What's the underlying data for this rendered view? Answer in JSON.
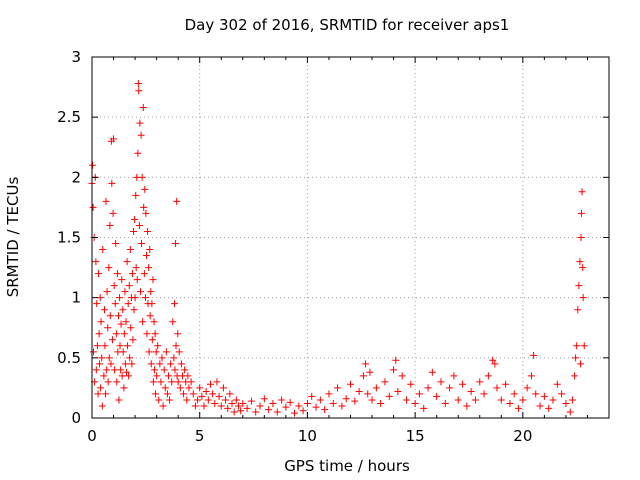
{
  "chart_data": {
    "type": "scatter",
    "title": "Day 302 of 2016, SRMTID for receiver aps1",
    "xlabel": "GPS time / hours",
    "ylabel": "SRMTID / TECUs",
    "xlim": [
      0,
      24
    ],
    "ylim": [
      0,
      3
    ],
    "xticks": [
      "0",
      "5",
      "10",
      "15",
      "20"
    ],
    "yticks": [
      "0",
      "0.5",
      "1",
      "1.5",
      "2",
      "2.5",
      "3"
    ],
    "grid": true,
    "grid_style": "dotted",
    "marker": "+",
    "color": "#ff0000",
    "series": [
      {
        "points": [
          [
            0.0,
            1.95
          ],
          [
            0.03,
            2.1
          ],
          [
            0.05,
            1.75
          ],
          [
            0.07,
            0.55
          ],
          [
            0.1,
            1.5
          ],
          [
            0.12,
            0.3
          ],
          [
            0.15,
            2.0
          ],
          [
            0.18,
            1.3
          ],
          [
            0.2,
            0.4
          ],
          [
            0.22,
            0.95
          ],
          [
            0.25,
            0.6
          ],
          [
            0.28,
            0.2
          ],
          [
            0.3,
            1.2
          ],
          [
            0.33,
            0.7
          ],
          [
            0.35,
            0.45
          ],
          [
            0.38,
            1.0
          ],
          [
            0.4,
            0.25
          ],
          [
            0.42,
            0.8
          ],
          [
            0.45,
            0.5
          ],
          [
            0.48,
            0.1
          ],
          [
            0.5,
            1.4
          ],
          [
            0.55,
            0.35
          ],
          [
            0.58,
            0.9
          ],
          [
            0.6,
            0.6
          ],
          [
            0.63,
            0.2
          ],
          [
            0.65,
            1.8
          ],
          [
            0.68,
            0.4
          ],
          [
            0.7,
            1.05
          ],
          [
            0.73,
            0.75
          ],
          [
            0.75,
            0.3
          ],
          [
            0.78,
            1.25
          ],
          [
            0.8,
            0.5
          ],
          [
            0.83,
            1.6
          ],
          [
            0.85,
            0.85
          ],
          [
            0.88,
            0.45
          ],
          [
            0.9,
            2.3
          ],
          [
            0.92,
            1.95
          ],
          [
            0.95,
            0.65
          ],
          [
            0.98,
            1.7
          ],
          [
            1.0,
            2.32
          ],
          [
            1.03,
            1.1
          ],
          [
            1.05,
            0.4
          ],
          [
            1.08,
            0.95
          ],
          [
            1.1,
            1.45
          ],
          [
            1.13,
            0.7
          ],
          [
            1.15,
            0.3
          ],
          [
            1.18,
            1.2
          ],
          [
            1.2,
            0.55
          ],
          [
            1.23,
            0.85
          ],
          [
            1.25,
            0.15
          ],
          [
            1.28,
            1.0
          ],
          [
            1.3,
            0.6
          ],
          [
            1.33,
            0.4
          ],
          [
            1.35,
            0.78
          ],
          [
            1.38,
            1.15
          ],
          [
            1.4,
            0.35
          ],
          [
            1.43,
            0.9
          ],
          [
            1.45,
            0.55
          ],
          [
            1.48,
            0.25
          ],
          [
            1.5,
            0.7
          ],
          [
            1.53,
            1.05
          ],
          [
            1.55,
            0.45
          ],
          [
            1.58,
            0.8
          ],
          [
            1.6,
            0.38
          ],
          [
            1.63,
            1.3
          ],
          [
            1.65,
            0.6
          ],
          [
            1.68,
            0.95
          ],
          [
            1.7,
            0.35
          ],
          [
            1.73,
            1.1
          ],
          [
            1.75,
            0.5
          ],
          [
            1.78,
            1.4
          ],
          [
            1.8,
            0.75
          ],
          [
            1.83,
            1.0
          ],
          [
            1.85,
            0.45
          ],
          [
            1.88,
            1.2
          ],
          [
            1.9,
            0.65
          ],
          [
            1.93,
            1.55
          ],
          [
            1.95,
            0.9
          ],
          [
            1.98,
            1.65
          ],
          [
            2.0,
            1.0
          ],
          [
            2.03,
            1.85
          ],
          [
            2.05,
            1.25
          ],
          [
            2.08,
            2.0
          ],
          [
            2.1,
            1.15
          ],
          [
            2.13,
            2.2
          ],
          [
            2.15,
            2.78
          ],
          [
            2.17,
            2.72
          ],
          [
            2.2,
            1.6
          ],
          [
            2.22,
            2.45
          ],
          [
            2.25,
            1.05
          ],
          [
            2.28,
            2.35
          ],
          [
            2.3,
            1.45
          ],
          [
            2.33,
            2.0
          ],
          [
            2.35,
            0.8
          ],
          [
            2.38,
            2.58
          ],
          [
            2.4,
            1.75
          ],
          [
            2.43,
            1.2
          ],
          [
            2.45,
            1.9
          ],
          [
            2.48,
            1.0
          ],
          [
            2.5,
            1.7
          ],
          [
            2.53,
            1.35
          ],
          [
            2.55,
            0.7
          ],
          [
            2.58,
            1.55
          ],
          [
            2.6,
            0.95
          ],
          [
            2.63,
            1.25
          ],
          [
            2.65,
            0.55
          ],
          [
            2.68,
            1.4
          ],
          [
            2.7,
            0.85
          ],
          [
            2.73,
            1.05
          ],
          [
            2.75,
            0.45
          ],
          [
            2.78,
            0.95
          ],
          [
            2.8,
            0.65
          ],
          [
            2.83,
            1.15
          ],
          [
            2.85,
            0.3
          ],
          [
            2.88,
            0.8
          ],
          [
            2.9,
            0.4
          ],
          [
            2.93,
            0.7
          ],
          [
            2.95,
            0.2
          ],
          [
            2.98,
            0.55
          ],
          [
            3.0,
            0.35
          ],
          [
            3.05,
            0.6
          ],
          [
            3.1,
            0.15
          ],
          [
            3.15,
            0.45
          ],
          [
            3.2,
            0.3
          ],
          [
            3.25,
            0.5
          ],
          [
            3.3,
            0.1
          ],
          [
            3.35,
            0.4
          ],
          [
            3.4,
            0.25
          ],
          [
            3.45,
            0.55
          ],
          [
            3.5,
            0.2
          ],
          [
            3.55,
            0.35
          ],
          [
            3.6,
            0.15
          ],
          [
            3.65,
            0.45
          ],
          [
            3.7,
            0.3
          ],
          [
            3.75,
            0.8
          ],
          [
            3.8,
            0.5
          ],
          [
            3.83,
            0.95
          ],
          [
            3.85,
            0.4
          ],
          [
            3.88,
            1.45
          ],
          [
            3.9,
            0.6
          ],
          [
            3.93,
            1.8
          ],
          [
            3.95,
            0.35
          ],
          [
            3.98,
            0.7
          ],
          [
            4.0,
            0.3
          ],
          [
            4.05,
            0.55
          ],
          [
            4.1,
            0.25
          ],
          [
            4.15,
            0.45
          ],
          [
            4.2,
            0.35
          ],
          [
            4.25,
            0.2
          ],
          [
            4.3,
            0.4
          ],
          [
            4.35,
            0.3
          ],
          [
            4.4,
            0.15
          ],
          [
            4.45,
            0.35
          ],
          [
            4.5,
            0.25
          ],
          [
            4.6,
            0.3
          ],
          [
            4.7,
            0.2
          ],
          [
            4.8,
            0.1
          ],
          [
            4.9,
            0.15
          ],
          [
            5.0,
            0.25
          ],
          [
            5.1,
            0.18
          ],
          [
            5.2,
            0.1
          ],
          [
            5.3,
            0.22
          ],
          [
            5.4,
            0.15
          ],
          [
            5.5,
            0.28
          ],
          [
            5.6,
            0.2
          ],
          [
            5.7,
            0.12
          ],
          [
            5.8,
            0.3
          ],
          [
            5.9,
            0.18
          ],
          [
            6.0,
            0.1
          ],
          [
            6.1,
            0.25
          ],
          [
            6.2,
            0.15
          ],
          [
            6.3,
            0.08
          ],
          [
            6.4,
            0.2
          ],
          [
            6.5,
            0.12
          ],
          [
            6.6,
            0.05
          ],
          [
            6.7,
            0.15
          ],
          [
            6.8,
            0.1
          ],
          [
            6.9,
            0.06
          ],
          [
            7.0,
            0.12
          ],
          [
            7.2,
            0.08
          ],
          [
            7.4,
            0.14
          ],
          [
            7.6,
            0.05
          ],
          [
            7.8,
            0.1
          ],
          [
            8.0,
            0.16
          ],
          [
            8.2,
            0.07
          ],
          [
            8.4,
            0.12
          ],
          [
            8.6,
            0.05
          ],
          [
            8.8,
            0.15
          ],
          [
            9.0,
            0.09
          ],
          [
            9.2,
            0.13
          ],
          [
            9.4,
            0.04
          ],
          [
            9.6,
            0.1
          ],
          [
            9.8,
            0.06
          ],
          [
            10.0,
            0.12
          ],
          [
            10.2,
            0.18
          ],
          [
            10.4,
            0.09
          ],
          [
            10.6,
            0.15
          ],
          [
            10.8,
            0.07
          ],
          [
            11.0,
            0.2
          ],
          [
            11.2,
            0.12
          ],
          [
            11.4,
            0.25
          ],
          [
            11.6,
            0.1
          ],
          [
            11.8,
            0.16
          ],
          [
            12.0,
            0.28
          ],
          [
            12.2,
            0.14
          ],
          [
            12.4,
            0.22
          ],
          [
            12.6,
            0.35
          ],
          [
            12.7,
            0.45
          ],
          [
            12.8,
            0.2
          ],
          [
            12.9,
            0.38
          ],
          [
            13.0,
            0.15
          ],
          [
            13.2,
            0.25
          ],
          [
            13.4,
            0.12
          ],
          [
            13.6,
            0.3
          ],
          [
            13.8,
            0.18
          ],
          [
            14.0,
            0.4
          ],
          [
            14.1,
            0.48
          ],
          [
            14.2,
            0.22
          ],
          [
            14.4,
            0.35
          ],
          [
            14.6,
            0.15
          ],
          [
            14.8,
            0.28
          ],
          [
            15.0,
            0.12
          ],
          [
            15.2,
            0.2
          ],
          [
            15.4,
            0.08
          ],
          [
            15.6,
            0.25
          ],
          [
            15.8,
            0.38
          ],
          [
            16.0,
            0.18
          ],
          [
            16.2,
            0.3
          ],
          [
            16.4,
            0.12
          ],
          [
            16.6,
            0.25
          ],
          [
            16.8,
            0.35
          ],
          [
            17.0,
            0.15
          ],
          [
            17.2,
            0.28
          ],
          [
            17.4,
            0.1
          ],
          [
            17.6,
            0.22
          ],
          [
            17.8,
            0.15
          ],
          [
            18.0,
            0.3
          ],
          [
            18.2,
            0.2
          ],
          [
            18.4,
            0.35
          ],
          [
            18.6,
            0.48
          ],
          [
            18.7,
            0.45
          ],
          [
            18.8,
            0.25
          ],
          [
            19.0,
            0.15
          ],
          [
            19.2,
            0.28
          ],
          [
            19.4,
            0.12
          ],
          [
            19.6,
            0.2
          ],
          [
            19.8,
            0.08
          ],
          [
            20.0,
            0.15
          ],
          [
            20.2,
            0.25
          ],
          [
            20.4,
            0.35
          ],
          [
            20.5,
            0.52
          ],
          [
            20.6,
            0.2
          ],
          [
            20.8,
            0.1
          ],
          [
            21.0,
            0.18
          ],
          [
            21.2,
            0.08
          ],
          [
            21.4,
            0.15
          ],
          [
            21.6,
            0.28
          ],
          [
            21.8,
            0.2
          ],
          [
            22.0,
            0.12
          ],
          [
            22.2,
            0.05
          ],
          [
            22.3,
            0.15
          ],
          [
            22.4,
            0.35
          ],
          [
            22.45,
            0.5
          ],
          [
            22.5,
            0.6
          ],
          [
            22.55,
            0.9
          ],
          [
            22.6,
            1.1
          ],
          [
            22.65,
            1.3
          ],
          [
            22.68,
            0.45
          ],
          [
            22.7,
            1.5
          ],
          [
            22.72,
            1.7
          ],
          [
            22.75,
            1.88
          ],
          [
            22.78,
            1.25
          ],
          [
            22.8,
            1.0
          ],
          [
            22.85,
            0.6
          ]
        ]
      }
    ]
  }
}
